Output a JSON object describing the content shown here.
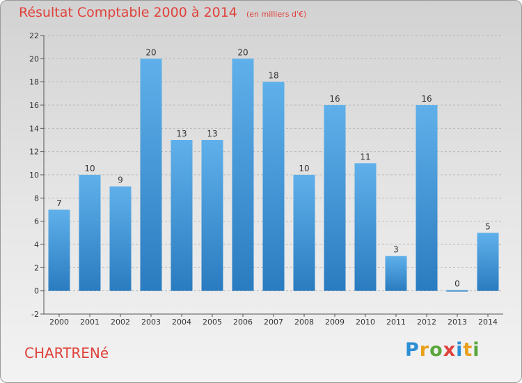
{
  "title": "Résultat Comptable 2000 à 2014",
  "unit_note": "(en milliers d'€)",
  "town": "CHARTRENé",
  "logo": {
    "text": "Proxiti",
    "letter_colors": [
      "#2b8fd6",
      "#e8a01b",
      "#59a63a",
      "#e0413a",
      "#2b8fd6",
      "#e8a01b",
      "#59a63a"
    ]
  },
  "chart_data": {
    "type": "bar",
    "categories": [
      "2000",
      "2001",
      "2002",
      "2003",
      "2004",
      "2005",
      "2006",
      "2007",
      "2008",
      "2009",
      "2010",
      "2011",
      "2012",
      "2013",
      "2014"
    ],
    "values": [
      7,
      10,
      9,
      20,
      13,
      13,
      20,
      18,
      10,
      16,
      11,
      3,
      16,
      0,
      5
    ],
    "ylim": [
      -2,
      22
    ],
    "yticks": [
      -2,
      0,
      2,
      4,
      6,
      8,
      10,
      12,
      14,
      16,
      18,
      20,
      22
    ],
    "grid": "horizontal dashed",
    "bar_color_top": "#5fb0ea",
    "bar_color_bottom": "#2a7cc0"
  }
}
